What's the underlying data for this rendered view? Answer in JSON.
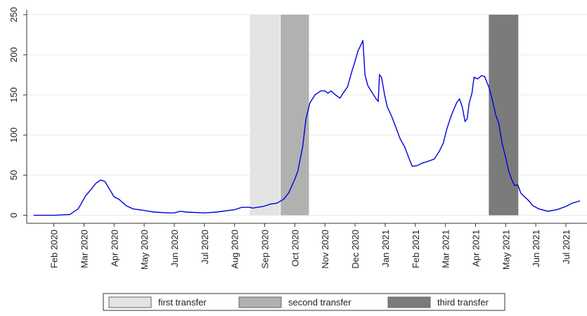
{
  "chart_data": {
    "type": "line",
    "x": [
      0.33,
      1.0,
      1.53,
      1.81,
      2.05,
      2.23,
      2.4,
      2.56,
      2.7,
      2.84,
      3.0,
      3.16,
      3.4,
      3.63,
      4.0,
      4.33,
      4.8,
      5.0,
      5.2,
      5.4,
      6.0,
      6.4,
      7.0,
      7.25,
      7.5,
      7.6,
      7.95,
      8.2,
      8.4,
      8.63,
      8.8,
      9.0,
      9.1,
      9.26,
      9.37,
      9.5,
      9.67,
      9.86,
      10.0,
      10.1,
      10.2,
      10.35,
      10.5,
      10.6,
      10.75,
      10.9,
      11.0,
      11.1,
      11.23,
      11.26,
      11.33,
      11.42,
      11.53,
      11.7,
      11.77,
      11.81,
      11.88,
      11.98,
      12.07,
      12.23,
      12.37,
      12.5,
      12.65,
      12.8,
      12.9,
      13.07,
      13.23,
      13.4,
      13.63,
      13.8,
      13.93,
      14.05,
      14.2,
      14.37,
      14.47,
      14.56,
      14.65,
      14.72,
      14.79,
      14.88,
      14.95,
      15.07,
      15.2,
      15.3,
      15.44,
      15.55,
      15.67,
      15.77,
      15.88,
      16.0,
      16.1,
      16.23,
      16.3,
      16.4,
      16.5,
      16.6,
      16.77,
      16.9,
      17.1,
      17.4,
      17.7,
      18.0,
      18.2,
      18.47
    ],
    "series": [
      {
        "color": "#0000dd",
        "values": [
          0,
          0,
          1,
          8,
          24,
          32,
          40,
          44,
          42,
          33,
          23,
          20,
          12,
          8,
          6,
          4,
          3,
          3,
          5,
          4,
          3,
          4,
          7,
          10,
          10,
          9,
          11,
          14,
          15,
          20,
          28,
          45,
          55,
          85,
          120,
          140,
          150,
          155,
          155,
          152,
          155,
          150,
          146,
          152,
          160,
          180,
          192,
          205,
          215,
          218,
          175,
          162,
          155,
          145,
          142,
          175,
          172,
          150,
          135,
          122,
          108,
          95,
          85,
          70,
          61,
          62,
          65,
          67,
          70,
          80,
          90,
          108,
          125,
          140,
          145,
          135,
          117,
          120,
          140,
          152,
          172,
          170,
          174,
          173,
          160,
          145,
          125,
          115,
          90,
          72,
          55,
          42,
          37,
          38,
          28,
          24,
          18,
          12,
          8,
          5,
          7,
          11,
          15,
          18
        ]
      }
    ],
    "bands": [
      {
        "name": "first transfer",
        "color": "#e3e3e3",
        "x": [
          7.51,
          8.51
        ],
        "y": [
          0,
          250
        ]
      },
      {
        "name": "second transfer",
        "color": "#b1b1b1",
        "x": [
          8.53,
          9.47
        ],
        "y": [
          0,
          250
        ]
      },
      {
        "name": "third transfer",
        "color": "#7b7b7b",
        "x": [
          15.44,
          16.42
        ],
        "y": [
          0,
          250
        ]
      }
    ],
    "xlim": [
      0.1,
      18.7
    ],
    "ylim": [
      -10,
      256
    ],
    "xticks": [
      {
        "value": 1,
        "label": "Feb 2020"
      },
      {
        "value": 2,
        "label": "Mar 2020"
      },
      {
        "value": 3,
        "label": "Apr 2020"
      },
      {
        "value": 4,
        "label": "May 2020"
      },
      {
        "value": 5,
        "label": "Jun 2020"
      },
      {
        "value": 6,
        "label": "Jul 2020"
      },
      {
        "value": 7,
        "label": "Aug 2020"
      },
      {
        "value": 8,
        "label": "Sep 2020"
      },
      {
        "value": 9,
        "label": "Oct 2020"
      },
      {
        "value": 10,
        "label": "Nov 2020"
      },
      {
        "value": 11,
        "label": "Dec 2020"
      },
      {
        "value": 12,
        "label": "Jan 2021"
      },
      {
        "value": 13,
        "label": "Feb 2021"
      },
      {
        "value": 14,
        "label": "Mar 2021"
      },
      {
        "value": 15,
        "label": "Apr 2021"
      },
      {
        "value": 16,
        "label": "May 2021"
      },
      {
        "value": 17,
        "label": "Jun 2021"
      },
      {
        "value": 18,
        "label": "Jul 2021"
      }
    ],
    "yticks": [
      0,
      50,
      100,
      150,
      200,
      250
    ],
    "grid": true
  }
}
